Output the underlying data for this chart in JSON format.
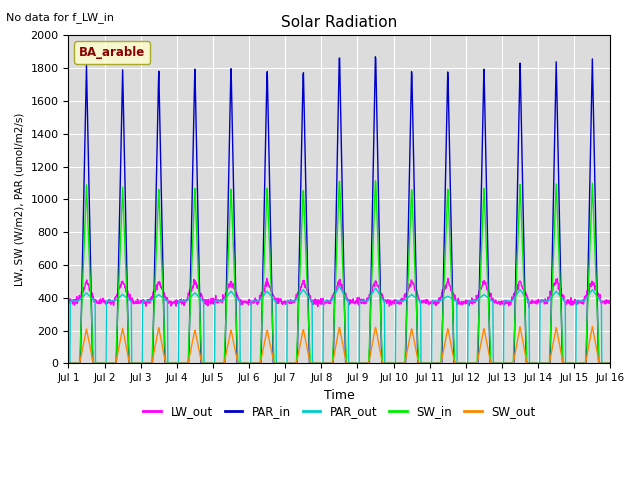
{
  "title": "Solar Radiation",
  "note": "No data for f_LW_in",
  "legend_label": "BA_arable",
  "xlabel": "Time",
  "ylabel": "LW, SW (W/m2), PAR (umol/m2/s)",
  "ylim": [
    0,
    2000
  ],
  "yticks": [
    0,
    200,
    400,
    600,
    800,
    1000,
    1200,
    1400,
    1600,
    1800,
    2000
  ],
  "num_days": 15,
  "points_per_day": 96,
  "background_color": "#dcdcdc",
  "series": {
    "LW_out": {
      "color": "#ff00ff",
      "lw": 1.0
    },
    "PAR_in": {
      "color": "#0000cc",
      "lw": 1.0
    },
    "PAR_out": {
      "color": "#00cccc",
      "lw": 1.0
    },
    "SW_in": {
      "color": "#00ee00",
      "lw": 1.0
    },
    "SW_out": {
      "color": "#ff8800",
      "lw": 1.0
    }
  },
  "PAR_in_peaks": [
    1820,
    1800,
    1800,
    1820,
    1830,
    1820,
    1820,
    1920,
    1920,
    1820,
    1810,
    1820,
    1850,
    1850,
    1860
  ],
  "PAR_in_dip": [
    900,
    1530,
    890,
    0,
    800,
    1570,
    0,
    0,
    0,
    1500,
    1500,
    0,
    1500,
    0,
    0
  ],
  "SW_in_peaks": [
    1090,
    1080,
    1070,
    1080,
    1080,
    1090,
    1080,
    1140,
    1140,
    1080,
    1080,
    1080,
    1100,
    1100,
    1100
  ],
  "PAR_out_peaks": [
    430,
    420,
    420,
    430,
    440,
    440,
    450,
    470,
    460,
    420,
    410,
    420,
    450,
    440,
    450
  ],
  "SW_out_peaks": [
    210,
    215,
    220,
    205,
    205,
    205,
    210,
    225,
    225,
    215,
    215,
    215,
    225,
    220,
    225
  ],
  "LW_out_base": 375,
  "LW_out_day_peak": 500,
  "grid_color": "#ffffff",
  "grid_lw": 0.8,
  "figsize": [
    6.4,
    4.8
  ],
  "dpi": 100
}
